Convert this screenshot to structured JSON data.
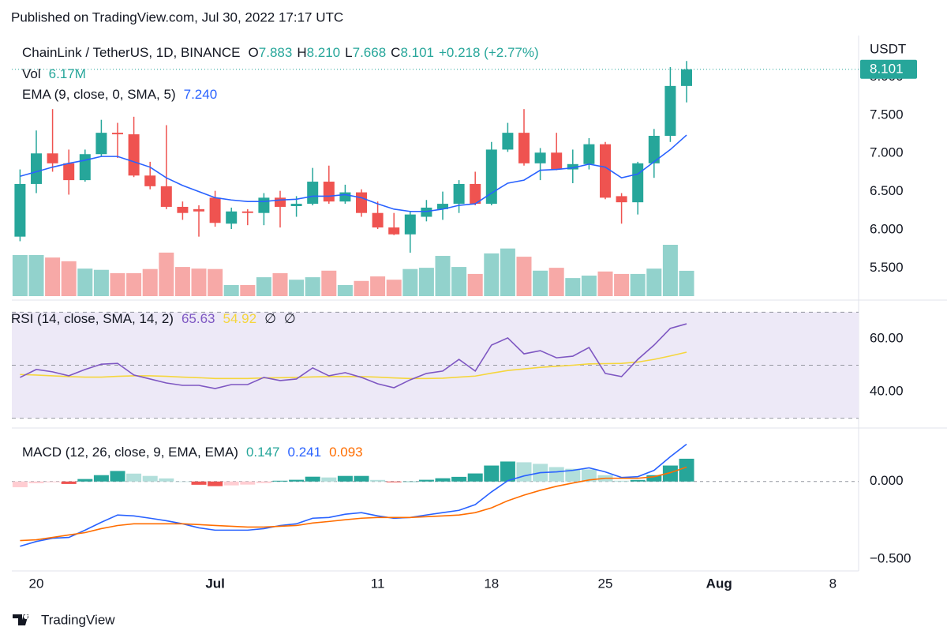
{
  "chart_data": {
    "type": "candlestick",
    "published": "Published on TradingView.com, Jul 30, 2022 17:17 UTC",
    "symbol": "ChainLink / TetherUS, 1D, BINANCE",
    "ohlc_readout": [
      {
        "label": "O",
        "text": "7.883"
      },
      {
        "label": "H",
        "text": "8.210"
      },
      {
        "label": "L",
        "text": "7.668"
      },
      {
        "label": "C",
        "text": "8.101"
      }
    ],
    "change_text": "+0.218 (+2.77%)",
    "currency": "USDT",
    "last_price_label": "8.101",
    "up_color": "#26a69a",
    "down_color": "#ef5350",
    "x": [
      "2022-06-19",
      "2022-06-20",
      "2022-06-21",
      "2022-06-22",
      "2022-06-23",
      "2022-06-24",
      "2022-06-25",
      "2022-06-26",
      "2022-06-27",
      "2022-06-28",
      "2022-06-29",
      "2022-06-30",
      "2022-07-01",
      "2022-07-02",
      "2022-07-03",
      "2022-07-04",
      "2022-07-05",
      "2022-07-06",
      "2022-07-07",
      "2022-07-08",
      "2022-07-09",
      "2022-07-10",
      "2022-07-11",
      "2022-07-12",
      "2022-07-13",
      "2022-07-14",
      "2022-07-15",
      "2022-07-16",
      "2022-07-17",
      "2022-07-18",
      "2022-07-19",
      "2022-07-20",
      "2022-07-21",
      "2022-07-22",
      "2022-07-23",
      "2022-07-24",
      "2022-07-25",
      "2022-07-26",
      "2022-07-27",
      "2022-07-28",
      "2022-07-29",
      "2022-07-30"
    ],
    "open": [
      5.91,
      6.6,
      7.0,
      6.87,
      6.65,
      6.99,
      7.27,
      7.25,
      6.71,
      6.57,
      6.3,
      6.27,
      6.42,
      6.08,
      6.24,
      6.22,
      6.42,
      6.31,
      6.34,
      6.63,
      6.37,
      6.49,
      6.22,
      6.03,
      5.94,
      6.17,
      6.27,
      6.34,
      6.6,
      6.34,
      7.05,
      7.27,
      6.87,
      7.01,
      6.79,
      6.86,
      7.12,
      6.44,
      6.36,
      6.87,
      7.23,
      7.883
    ],
    "high": [
      6.79,
      7.3,
      7.58,
      7.05,
      7.05,
      7.44,
      7.4,
      7.48,
      6.89,
      7.37,
      6.37,
      6.32,
      6.51,
      6.29,
      6.27,
      6.48,
      6.51,
      6.44,
      6.81,
      6.84,
      6.59,
      6.53,
      6.37,
      6.22,
      6.24,
      6.39,
      6.5,
      6.65,
      6.76,
      7.15,
      7.4,
      7.58,
      7.07,
      7.27,
      7.05,
      7.2,
      7.15,
      6.48,
      6.89,
      7.32,
      8.13,
      8.21
    ],
    "low": [
      5.85,
      6.48,
      6.76,
      6.46,
      6.63,
      6.96,
      6.94,
      6.69,
      6.53,
      6.27,
      6.13,
      5.91,
      6.04,
      6.01,
      6.06,
      6.06,
      6.03,
      6.17,
      6.32,
      6.34,
      6.34,
      6.17,
      6.01,
      5.93,
      5.7,
      6.11,
      6.13,
      6.22,
      6.32,
      6.32,
      7.02,
      6.84,
      6.65,
      6.78,
      6.61,
      6.79,
      6.4,
      6.08,
      6.2,
      6.68,
      7.15,
      7.668
    ],
    "close": [
      6.6,
      7.0,
      6.87,
      6.65,
      6.99,
      7.27,
      7.25,
      6.71,
      6.57,
      6.3,
      6.22,
      6.24,
      6.09,
      6.24,
      6.22,
      6.42,
      6.3,
      6.34,
      6.63,
      6.37,
      6.49,
      6.22,
      6.03,
      5.94,
      6.2,
      6.29,
      6.34,
      6.6,
      6.34,
      7.05,
      7.27,
      6.87,
      7.01,
      6.79,
      6.86,
      7.12,
      6.42,
      6.36,
      6.87,
      7.23,
      7.883,
      8.101
    ],
    "ylim": [
      5.1,
      8.44
    ],
    "yticks": [
      {
        "value": 5.5,
        "label": "5.500"
      },
      {
        "value": 6.0,
        "label": "6.000"
      },
      {
        "value": 6.5,
        "label": "6.500"
      },
      {
        "value": 7.0,
        "label": "7.000"
      },
      {
        "value": 7.5,
        "label": "7.500"
      },
      {
        "value": 8.0,
        "label": "8.000"
      }
    ],
    "xticks": [
      {
        "value": "2022-06-20",
        "label": "20"
      },
      {
        "value": "2022-07-01",
        "label": "Jul"
      },
      {
        "value": "2022-07-11",
        "label": "11"
      },
      {
        "value": "2022-07-18",
        "label": "18"
      },
      {
        "value": "2022-07-25",
        "label": "25"
      },
      {
        "value": "2022-08-01",
        "label": "Aug"
      },
      {
        "value": "2022-08-08",
        "label": "8"
      }
    ],
    "volume": {
      "name": "Vol",
      "value_label": "6.17M",
      "values": [
        10.0,
        10.0,
        9.4,
        8.5,
        6.7,
        6.4,
        5.6,
        5.6,
        6.6,
        10.6,
        7.1,
        6.7,
        6.6,
        2.7,
        2.7,
        4.6,
        5.6,
        4.0,
        4.6,
        6.2,
        2.7,
        3.7,
        4.8,
        4.0,
        6.6,
        6.9,
        9.8,
        7.1,
        5.4,
        10.4,
        11.6,
        9.6,
        6.2,
        6.9,
        4.4,
        5.0,
        6.0,
        5.4,
        5.4,
        6.7,
        12.5,
        6.17
      ]
    },
    "ema": {
      "name": "EMA (9, close, 0, SMA, 5)",
      "value_label": "7.240",
      "color": "#2962ff",
      "values": [
        6.7,
        6.76,
        6.82,
        6.87,
        6.91,
        6.96,
        6.96,
        6.89,
        6.82,
        6.68,
        6.58,
        6.5,
        6.42,
        6.39,
        6.37,
        6.37,
        6.39,
        6.4,
        6.44,
        6.44,
        6.46,
        6.42,
        6.34,
        6.27,
        6.24,
        6.24,
        6.27,
        6.32,
        6.34,
        6.48,
        6.61,
        6.65,
        6.78,
        6.79,
        6.81,
        6.86,
        6.82,
        6.68,
        6.73,
        6.89,
        7.05,
        7.24
      ]
    },
    "rsi": {
      "name": "RSI (14, close, SMA, 14, 2)",
      "ylim": [
        26.9,
        73.7
      ],
      "yticks": [
        {
          "value": 40,
          "label": "40.00"
        },
        {
          "value": 60,
          "label": "60.00"
        }
      ],
      "levels": [
        30,
        50,
        70
      ],
      "band_color": "#ede9f7",
      "extra_labels": [
        "∅",
        "∅"
      ],
      "series": [
        {
          "name": "RSI",
          "color": "#7e57c2",
          "value_label": "65.63",
          "values": [
            45.4,
            48.4,
            47.5,
            46.0,
            48.4,
            50.4,
            50.7,
            46.3,
            44.8,
            43.3,
            42.4,
            42.4,
            41.2,
            42.7,
            42.7,
            45.4,
            44.2,
            44.8,
            49.0,
            46.0,
            47.2,
            45.4,
            43.0,
            41.5,
            44.5,
            46.9,
            47.8,
            52.2,
            47.8,
            57.6,
            60.3,
            54.3,
            55.5,
            52.8,
            53.4,
            56.7,
            46.9,
            45.7,
            52.2,
            57.6,
            63.9,
            65.63
          ]
        },
        {
          "name": "SMA",
          "color": "#f5d63d",
          "value_label": "54.92",
          "values": [
            46.5,
            46.3,
            46.0,
            45.7,
            45.5,
            45.5,
            45.8,
            46.0,
            46.0,
            45.8,
            45.5,
            45.3,
            45.0,
            45.0,
            45.0,
            45.2,
            45.3,
            45.4,
            45.6,
            45.7,
            45.7,
            45.7,
            45.5,
            45.2,
            45.0,
            45.0,
            45.1,
            45.5,
            45.9,
            47.0,
            48.0,
            48.6,
            49.2,
            49.6,
            50.0,
            50.5,
            50.6,
            50.7,
            51.2,
            52.2,
            53.5,
            54.92
          ]
        }
      ]
    },
    "macd": {
      "name": "MACD (12, 26, close, 9, EMA, EMA)",
      "ylim": [
        -0.572,
        0.33
      ],
      "yticks": [
        {
          "value": 0,
          "label": "0.000"
        },
        {
          "value": -0.5,
          "label": "−0.500"
        }
      ],
      "histogram": {
        "name": "Histogram",
        "value_label": "0.147",
        "colors": [
          "#26a69a",
          "#b2dfdb",
          "#ffcdd2",
          "#ef5350"
        ],
        "values": [
          -0.037,
          -0.011,
          -0.005,
          -0.016,
          0.016,
          0.041,
          0.068,
          0.051,
          0.036,
          0.02,
          0.0,
          -0.021,
          -0.03,
          -0.025,
          -0.02,
          -0.01,
          0.005,
          0.011,
          0.031,
          0.026,
          0.036,
          0.036,
          0.01,
          -0.005,
          0.0,
          0.011,
          0.021,
          0.03,
          0.052,
          0.103,
          0.129,
          0.124,
          0.114,
          0.093,
          0.082,
          0.078,
          0.041,
          0.005,
          0.01,
          0.041,
          0.103,
          0.147
        ]
      },
      "series": [
        {
          "name": "MACD",
          "color": "#2962ff",
          "value_label": "0.241",
          "values": [
            -0.418,
            -0.387,
            -0.366,
            -0.361,
            -0.314,
            -0.263,
            -0.216,
            -0.222,
            -0.237,
            -0.253,
            -0.273,
            -0.299,
            -0.314,
            -0.314,
            -0.314,
            -0.304,
            -0.284,
            -0.273,
            -0.237,
            -0.232,
            -0.211,
            -0.201,
            -0.222,
            -0.237,
            -0.232,
            -0.216,
            -0.201,
            -0.186,
            -0.149,
            -0.067,
            0.005,
            0.036,
            0.057,
            0.062,
            0.072,
            0.088,
            0.062,
            0.026,
            0.031,
            0.072,
            0.16,
            0.241
          ]
        },
        {
          "name": "Signal",
          "color": "#ff6d00",
          "value_label": "0.093",
          "values": [
            -0.381,
            -0.376,
            -0.361,
            -0.345,
            -0.33,
            -0.304,
            -0.284,
            -0.273,
            -0.273,
            -0.273,
            -0.273,
            -0.278,
            -0.284,
            -0.289,
            -0.294,
            -0.294,
            -0.289,
            -0.284,
            -0.268,
            -0.258,
            -0.247,
            -0.237,
            -0.232,
            -0.232,
            -0.232,
            -0.227,
            -0.222,
            -0.216,
            -0.201,
            -0.17,
            -0.124,
            -0.088,
            -0.057,
            -0.031,
            -0.01,
            0.01,
            0.021,
            0.021,
            0.021,
            0.031,
            0.057,
            0.093
          ]
        }
      ]
    },
    "brand": "TradingView"
  }
}
